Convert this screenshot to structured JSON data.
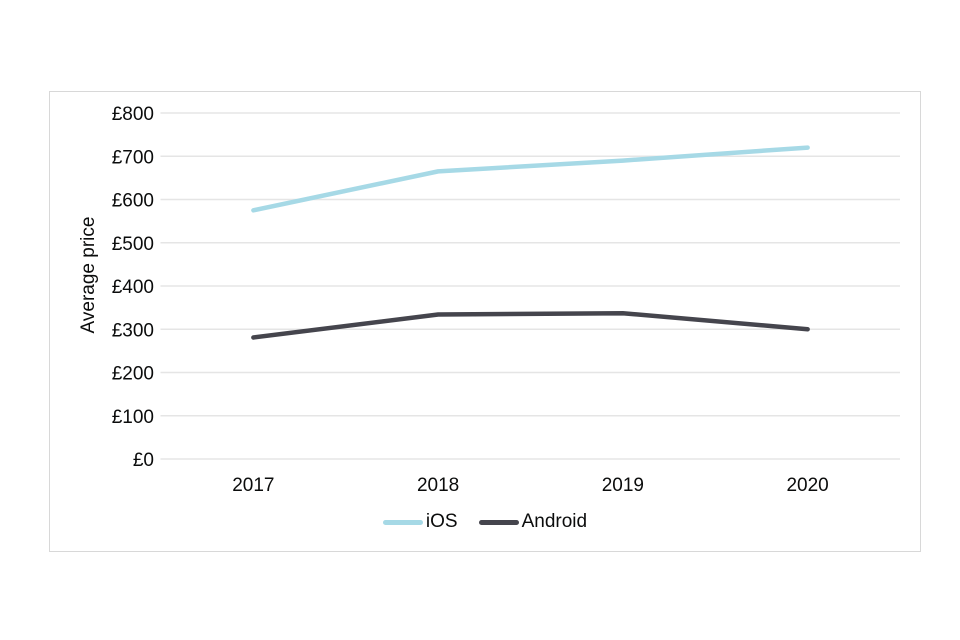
{
  "chart_data": {
    "type": "line",
    "categories": [
      "2017",
      "2018",
      "2019",
      "2020"
    ],
    "series": [
      {
        "name": "iOS",
        "values": [
          575,
          665,
          690,
          720
        ],
        "color": "#a6d9e6"
      },
      {
        "name": "Android",
        "values": [
          281,
          334,
          337,
          300
        ],
        "color": "#45454d"
      }
    ],
    "title": "",
    "xlabel": "",
    "ylabel": "Average price",
    "ylim": [
      0,
      800
    ],
    "ytick_values": [
      0,
      100,
      200,
      300,
      400,
      500,
      600,
      700,
      800
    ],
    "ytick_labels": [
      "£0",
      "£100",
      "£200",
      "£300",
      "£400",
      "£500",
      "£600",
      "£700",
      "£800"
    ],
    "grid": "horizontal-only",
    "legend_position": "bottom-center"
  },
  "colors": {
    "ios_line": "#a6d9e6",
    "android_line": "#45454d",
    "gridline": "#e5e5e5",
    "frame_border": "#d8d8d8",
    "text": "#0b0c0c",
    "background": "#ffffff"
  }
}
